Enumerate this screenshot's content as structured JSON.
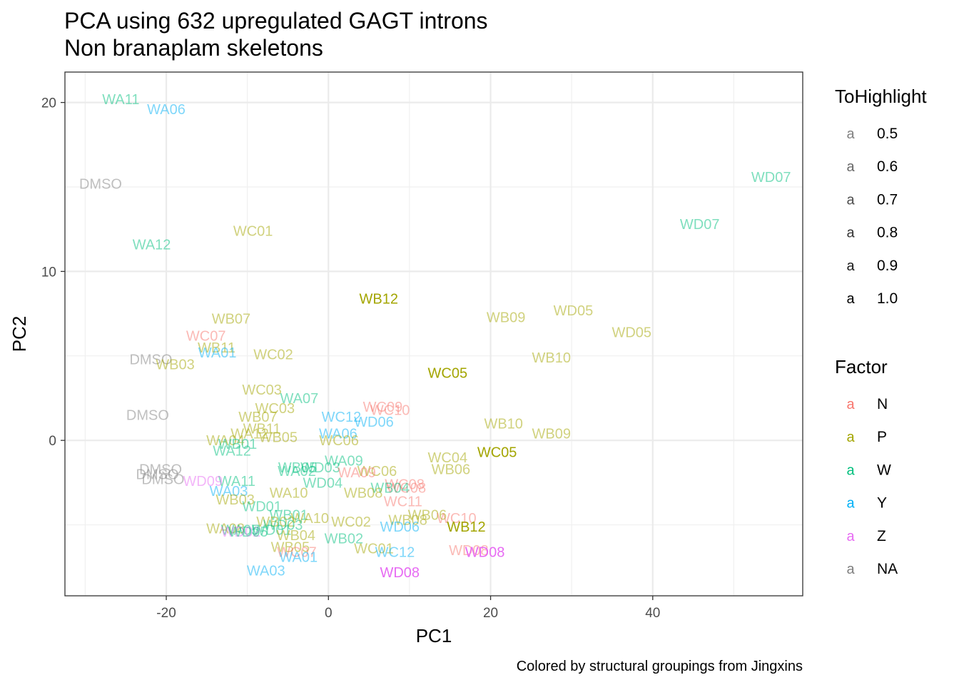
{
  "chart_data": {
    "type": "scatter",
    "title": "PCA using 632 upregulated GAGT introns",
    "subtitle": "Non branaplam skeletons",
    "xlabel": "PC1",
    "ylabel": "PC2",
    "caption": "Colored by structural groupings from Jingxins",
    "xlim": [
      -32.5,
      58.5
    ],
    "ylim": [
      -9.2,
      21.8
    ],
    "xticks": [
      -20,
      0,
      20,
      40
    ],
    "yticks": [
      0,
      10,
      20
    ],
    "grid": true,
    "colors": {
      "N": "#F8766D",
      "P": "#A3A500",
      "W": "#00BF7D",
      "Y": "#00B0F6",
      "Z": "#E76BF3",
      "NA": "#7F7F7F"
    },
    "legends": [
      {
        "title": "ToHighlight",
        "key_glyph": "a",
        "items": [
          {
            "label": "0.5",
            "alpha": 0.5
          },
          {
            "label": "0.6",
            "alpha": 0.6
          },
          {
            "label": "0.7",
            "alpha": 0.7
          },
          {
            "label": "0.8",
            "alpha": 0.8
          },
          {
            "label": "0.9",
            "alpha": 0.9
          },
          {
            "label": "1.0",
            "alpha": 1.0
          }
        ]
      },
      {
        "title": "Factor",
        "key_glyph": "a",
        "items": [
          {
            "label": "N",
            "color": "#F8766D"
          },
          {
            "label": "P",
            "color": "#A3A500"
          },
          {
            "label": "W",
            "color": "#00BF7D"
          },
          {
            "label": "Y",
            "color": "#00B0F6"
          },
          {
            "label": "Z",
            "color": "#E76BF3"
          },
          {
            "label": "NA",
            "color": "#7F7F7F"
          }
        ]
      }
    ],
    "points": [
      {
        "label": "WA11",
        "x": -25.6,
        "y": 20.2,
        "factor": "W",
        "alpha": 0.5
      },
      {
        "label": "WA06",
        "x": -20.0,
        "y": 19.6,
        "factor": "Y",
        "alpha": 0.5
      },
      {
        "label": "DMSO",
        "x": -28.1,
        "y": 15.2,
        "factor": "NA",
        "alpha": 0.5
      },
      {
        "label": "WD07",
        "x": 54.6,
        "y": 15.6,
        "factor": "W",
        "alpha": 0.5
      },
      {
        "label": "WD07",
        "x": 45.8,
        "y": 12.8,
        "factor": "W",
        "alpha": 0.5
      },
      {
        "label": "WC01",
        "x": -9.3,
        "y": 12.4,
        "factor": "P",
        "alpha": 0.5
      },
      {
        "label": "WA12",
        "x": -21.8,
        "y": 11.6,
        "factor": "W",
        "alpha": 0.5
      },
      {
        "label": "WB12",
        "x": 6.2,
        "y": 8.4,
        "factor": "P",
        "alpha": 1.0
      },
      {
        "label": "WB09",
        "x": 21.9,
        "y": 7.3,
        "factor": "P",
        "alpha": 0.5
      },
      {
        "label": "WD05",
        "x": 30.2,
        "y": 7.7,
        "factor": "P",
        "alpha": 0.5
      },
      {
        "label": "WD05",
        "x": 37.4,
        "y": 6.4,
        "factor": "P",
        "alpha": 0.5
      },
      {
        "label": "WB07",
        "x": -12.0,
        "y": 7.2,
        "factor": "P",
        "alpha": 0.5
      },
      {
        "label": "WC07",
        "x": -15.1,
        "y": 6.2,
        "factor": "N",
        "alpha": 0.5
      },
      {
        "label": "WB11",
        "x": -13.8,
        "y": 5.5,
        "factor": "P",
        "alpha": 0.5
      },
      {
        "label": "WA01",
        "x": -13.7,
        "y": 5.2,
        "factor": "Y",
        "alpha": 0.5
      },
      {
        "label": "WC02",
        "x": -6.8,
        "y": 5.1,
        "factor": "P",
        "alpha": 0.5
      },
      {
        "label": "WB10",
        "x": 27.5,
        "y": 4.9,
        "factor": "P",
        "alpha": 0.5
      },
      {
        "label": "DMSO",
        "x": -21.9,
        "y": 4.8,
        "factor": "NA",
        "alpha": 0.5
      },
      {
        "label": "WB03",
        "x": -18.9,
        "y": 4.5,
        "factor": "P",
        "alpha": 0.5
      },
      {
        "label": "WC05",
        "x": 14.7,
        "y": 4.0,
        "factor": "P",
        "alpha": 1.0
      },
      {
        "label": "WC03",
        "x": -8.2,
        "y": 3.0,
        "factor": "P",
        "alpha": 0.5
      },
      {
        "label": "WA07",
        "x": -3.6,
        "y": 2.5,
        "factor": "W",
        "alpha": 0.5
      },
      {
        "label": "WC03",
        "x": -6.6,
        "y": 1.9,
        "factor": "P",
        "alpha": 0.5
      },
      {
        "label": "WC09",
        "x": 6.7,
        "y": 2.0,
        "factor": "N",
        "alpha": 0.5
      },
      {
        "label": "WC10",
        "x": 7.6,
        "y": 1.8,
        "factor": "N",
        "alpha": 0.5
      },
      {
        "label": "DMSO",
        "x": -22.3,
        "y": 1.5,
        "factor": "NA",
        "alpha": 0.5
      },
      {
        "label": "WB07",
        "x": -8.7,
        "y": 1.4,
        "factor": "P",
        "alpha": 0.5
      },
      {
        "label": "WC12",
        "x": 1.6,
        "y": 1.4,
        "factor": "Y",
        "alpha": 0.5
      },
      {
        "label": "WD06",
        "x": 5.6,
        "y": 1.1,
        "factor": "Y",
        "alpha": 0.5
      },
      {
        "label": "WB10",
        "x": 21.6,
        "y": 1.0,
        "factor": "P",
        "alpha": 0.5
      },
      {
        "label": "WB11",
        "x": -8.2,
        "y": 0.7,
        "factor": "P",
        "alpha": 0.5
      },
      {
        "label": "WB09",
        "x": 27.5,
        "y": 0.4,
        "factor": "P",
        "alpha": 0.5
      },
      {
        "label": "WA06",
        "x": 1.2,
        "y": 0.4,
        "factor": "Y",
        "alpha": 0.5
      },
      {
        "label": "WB05",
        "x": -6.2,
        "y": 0.2,
        "factor": "P",
        "alpha": 0.5
      },
      {
        "label": "WA04",
        "x": -12.7,
        "y": 0.0,
        "factor": "P",
        "alpha": 0.5
      },
      {
        "label": "WA12",
        "x": -9.7,
        "y": 0.4,
        "factor": "P",
        "alpha": 0.5
      },
      {
        "label": "WB01",
        "x": -11.2,
        "y": -0.2,
        "factor": "W",
        "alpha": 0.5
      },
      {
        "label": "WC06",
        "x": 1.3,
        "y": 0.0,
        "factor": "P",
        "alpha": 0.5
      },
      {
        "label": "WA12",
        "x": -11.9,
        "y": -0.6,
        "factor": "W",
        "alpha": 0.5
      },
      {
        "label": "WC04",
        "x": 14.7,
        "y": -1.0,
        "factor": "P",
        "alpha": 0.5
      },
      {
        "label": "WC05",
        "x": 20.8,
        "y": -0.7,
        "factor": "P",
        "alpha": 1.0
      },
      {
        "label": "WA09",
        "x": 1.9,
        "y": -1.2,
        "factor": "W",
        "alpha": 0.5
      },
      {
        "label": "WB06",
        "x": 15.1,
        "y": -1.7,
        "factor": "P",
        "alpha": 0.5
      },
      {
        "label": "DMSO",
        "x": -20.7,
        "y": -1.7,
        "factor": "NA",
        "alpha": 0.5
      },
      {
        "label": "WB05",
        "x": -3.8,
        "y": -1.6,
        "factor": "W",
        "alpha": 0.5
      },
      {
        "label": "WD03",
        "x": -1.0,
        "y": -1.6,
        "factor": "W",
        "alpha": 0.5
      },
      {
        "label": "WA02",
        "x": -3.9,
        "y": -1.8,
        "factor": "W",
        "alpha": 0.5
      },
      {
        "label": "WC06",
        "x": 6.0,
        "y": -1.8,
        "factor": "P",
        "alpha": 0.5
      },
      {
        "label": "WA09",
        "x": 3.5,
        "y": -1.9,
        "factor": "N",
        "alpha": 0.5
      },
      {
        "label": "DMSO",
        "x": -21.1,
        "y": -2.0,
        "factor": "NA",
        "alpha": 0.5
      },
      {
        "label": "DMSO",
        "x": -20.4,
        "y": -2.3,
        "factor": "NA",
        "alpha": 0.5
      },
      {
        "label": "WA11",
        "x": -11.3,
        "y": -2.4,
        "factor": "W",
        "alpha": 0.5
      },
      {
        "label": "WD04",
        "x": -0.7,
        "y": -2.5,
        "factor": "W",
        "alpha": 0.5
      },
      {
        "label": "WD09",
        "x": -15.5,
        "y": -2.4,
        "factor": "Z",
        "alpha": 0.5
      },
      {
        "label": "WC08",
        "x": 9.4,
        "y": -2.6,
        "factor": "N",
        "alpha": 0.5
      },
      {
        "label": "WC08",
        "x": 9.6,
        "y": -2.8,
        "factor": "N",
        "alpha": 0.5
      },
      {
        "label": "WB04",
        "x": 7.6,
        "y": -2.8,
        "factor": "W",
        "alpha": 0.5
      },
      {
        "label": "WA03",
        "x": -12.3,
        "y": -3.0,
        "factor": "Y",
        "alpha": 0.5
      },
      {
        "label": "WB08",
        "x": 4.3,
        "y": -3.1,
        "factor": "P",
        "alpha": 0.5
      },
      {
        "label": "WA10",
        "x": -4.9,
        "y": -3.1,
        "factor": "P",
        "alpha": 0.5
      },
      {
        "label": "WC11",
        "x": 9.2,
        "y": -3.6,
        "factor": "N",
        "alpha": 0.5
      },
      {
        "label": "WB03",
        "x": -11.5,
        "y": -3.5,
        "factor": "P",
        "alpha": 0.5
      },
      {
        "label": "WD01",
        "x": -8.2,
        "y": -3.9,
        "factor": "W",
        "alpha": 0.5
      },
      {
        "label": "WB01",
        "x": -4.9,
        "y": -4.4,
        "factor": "W",
        "alpha": 0.5
      },
      {
        "label": "WB06",
        "x": 12.2,
        "y": -4.4,
        "factor": "P",
        "alpha": 0.5
      },
      {
        "label": "WC10",
        "x": 15.8,
        "y": -4.6,
        "factor": "N",
        "alpha": 0.5
      },
      {
        "label": "WA10",
        "x": -2.3,
        "y": -4.6,
        "factor": "P",
        "alpha": 0.5
      },
      {
        "label": "WB02",
        "x": -6.5,
        "y": -4.8,
        "factor": "P",
        "alpha": 0.5
      },
      {
        "label": "WC02",
        "x": 2.8,
        "y": -4.8,
        "factor": "P",
        "alpha": 0.5
      },
      {
        "label": "WB08",
        "x": 9.8,
        "y": -4.7,
        "factor": "P",
        "alpha": 0.5
      },
      {
        "label": "WD03",
        "x": -5.6,
        "y": -5.0,
        "factor": "W",
        "alpha": 0.5
      },
      {
        "label": "WD06",
        "x": 8.8,
        "y": -5.1,
        "factor": "Y",
        "alpha": 0.5
      },
      {
        "label": "WB12",
        "x": 17.0,
        "y": -5.1,
        "factor": "P",
        "alpha": 1.0
      },
      {
        "label": "WA08",
        "x": -12.7,
        "y": -5.2,
        "factor": "P",
        "alpha": 0.5
      },
      {
        "label": "WA05",
        "x": -10.9,
        "y": -5.3,
        "factor": "W",
        "alpha": 0.5
      },
      {
        "label": "WD02",
        "x": -10.8,
        "y": -5.4,
        "factor": "Z",
        "alpha": 0.5
      },
      {
        "label": "WD05",
        "x": -9.9,
        "y": -5.4,
        "factor": "W",
        "alpha": 0.5
      },
      {
        "label": "WD01",
        "x": -7.0,
        "y": -5.3,
        "factor": "W",
        "alpha": 0.5
      },
      {
        "label": "WB04",
        "x": -4.0,
        "y": -5.6,
        "factor": "P",
        "alpha": 0.5
      },
      {
        "label": "WB02",
        "x": 1.9,
        "y": -5.8,
        "factor": "W",
        "alpha": 0.5
      },
      {
        "label": "WB05",
        "x": -4.7,
        "y": -6.3,
        "factor": "P",
        "alpha": 0.5
      },
      {
        "label": "WC01",
        "x": 5.6,
        "y": -6.4,
        "factor": "P",
        "alpha": 0.5
      },
      {
        "label": "WC12",
        "x": 8.2,
        "y": -6.6,
        "factor": "Y",
        "alpha": 0.5
      },
      {
        "label": "WC07",
        "x": -3.9,
        "y": -6.6,
        "factor": "N",
        "alpha": 0.5
      },
      {
        "label": "WD08",
        "x": 17.3,
        "y": -6.5,
        "factor": "N",
        "alpha": 0.5
      },
      {
        "label": "WD08",
        "x": 19.3,
        "y": -6.6,
        "factor": "Z",
        "alpha": 1.0
      },
      {
        "label": "WA01",
        "x": -3.7,
        "y": -6.9,
        "factor": "Y",
        "alpha": 0.5
      },
      {
        "label": "WA03",
        "x": -7.7,
        "y": -7.7,
        "factor": "Y",
        "alpha": 0.5
      },
      {
        "label": "WD08",
        "x": 8.8,
        "y": -7.8,
        "factor": "Z",
        "alpha": 1.0
      }
    ]
  }
}
